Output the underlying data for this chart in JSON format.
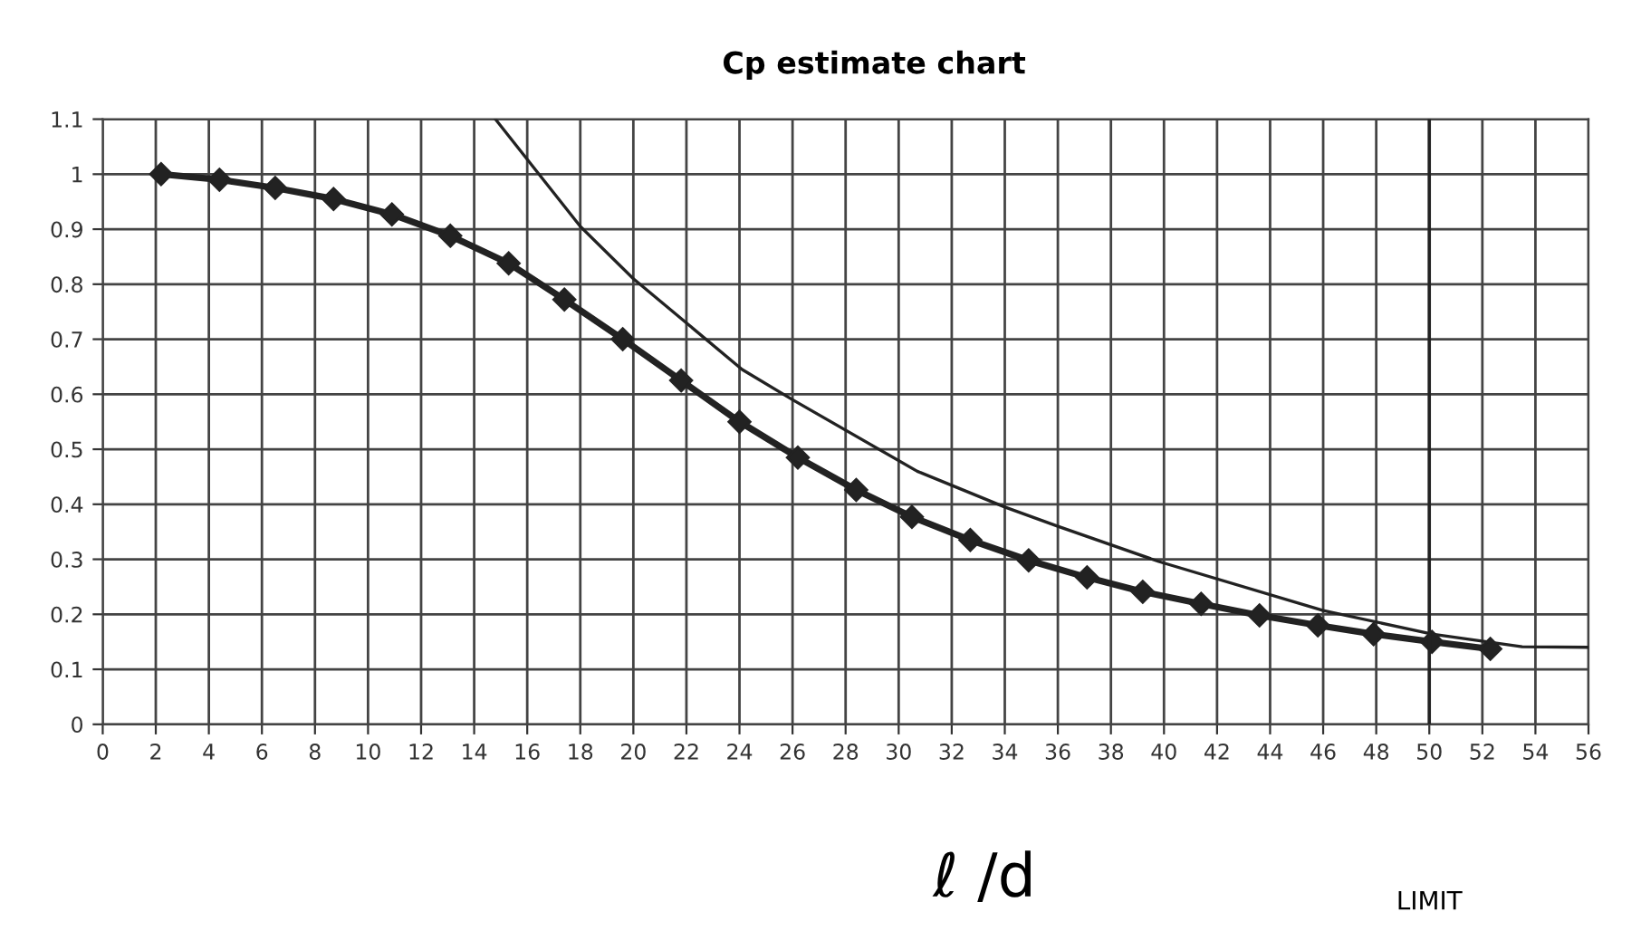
{
  "chart_data": {
    "type": "line",
    "title": "Cp estimate chart",
    "xlabel": "ℓ /d",
    "xlim": [
      0,
      56
    ],
    "xticks": [
      0,
      2,
      4,
      6,
      8,
      10,
      12,
      14,
      16,
      18,
      20,
      22,
      24,
      26,
      28,
      30,
      32,
      34,
      36,
      38,
      40,
      42,
      44,
      46,
      48,
      50,
      52,
      54,
      56
    ],
    "ylim": [
      0,
      1.1
    ],
    "yticks": [
      0,
      0.1,
      0.2,
      0.3,
      0.4,
      0.5,
      0.6,
      0.7,
      0.8,
      0.9,
      1,
      1.1
    ],
    "grid": true,
    "series": [
      {
        "color": "#222222",
        "marker": "diamond",
        "x": [
          2.2,
          4.4,
          6.5,
          8.7,
          10.9,
          13.1,
          15.3,
          17.4,
          19.6,
          21.8,
          24.0,
          26.2,
          28.4,
          30.5,
          32.7,
          34.9,
          37.1,
          39.2,
          41.4,
          43.6,
          45.8,
          47.9,
          50.1,
          52.3
        ],
        "values": [
          1.0,
          0.99,
          0.975,
          0.955,
          0.927,
          0.888,
          0.838,
          0.772,
          0.7,
          0.625,
          0.55,
          0.485,
          0.426,
          0.377,
          0.335,
          0.298,
          0.267,
          0.241,
          0.219,
          0.198,
          0.18,
          0.164,
          0.15,
          0.137
        ]
      },
      {
        "color": "#222222",
        "marker": "none",
        "x": [
          14.8,
          18.0,
          20.0,
          24.1,
          26.0,
          30.7,
          34.0,
          36.0,
          39.8,
          46.0,
          50.1,
          53.5,
          56.0
        ],
        "values": [
          1.1,
          0.905,
          0.81,
          0.645,
          0.59,
          0.46,
          0.395,
          0.36,
          0.296,
          0.207,
          0.164,
          0.141,
          0.14
        ]
      }
    ],
    "ref_lines": [
      {
        "axis": "x",
        "value": 50,
        "label": "LIMIT",
        "color": "#222222"
      }
    ]
  }
}
